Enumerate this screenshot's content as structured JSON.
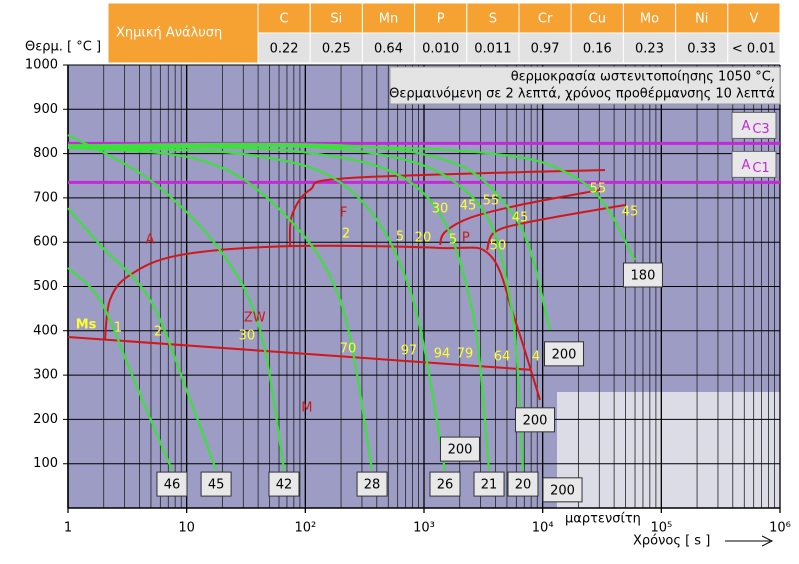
{
  "chart_data": {
    "type": "cct",
    "y_label": "Θερμ. [ °C ]",
    "x_label": "Χρόνος [ s ]",
    "xlim": [
      1,
      1000000
    ],
    "xticks": [
      1,
      10,
      {
        "value": 100,
        "label": "10²"
      },
      {
        "value": 1000,
        "label": "10³"
      },
      {
        "value": 10000,
        "label": "10⁴"
      },
      {
        "value": 100000,
        "label": "10⁵"
      },
      {
        "value": 1000000,
        "label": "10⁶"
      }
    ],
    "ylim": [
      0,
      1000
    ],
    "yticks": [
      100,
      200,
      300,
      400,
      500,
      600,
      700,
      800,
      900,
      1000
    ],
    "log_x": true,
    "grid": true,
    "chemical_analysis": {
      "title": "Χημική Ανάλυση",
      "elements": [
        "C",
        "Si",
        "Mn",
        "P",
        "S",
        "Cr",
        "Cu",
        "Mo",
        "Ni",
        "V"
      ],
      "values": [
        "0.22",
        "0.25",
        "0.64",
        "0.010",
        "0.011",
        "0.97",
        "0.16",
        "0.23",
        "0.33",
        "< 0.01"
      ]
    },
    "info": [
      "θερμοκρασία ωστενιτοποίησης 1050 °C,",
      "Θερμαινόμενη σε 2 λεπτά, χρόνος προθέρμανσης 10 λεπτά"
    ],
    "ac_lines": [
      {
        "main": "A",
        "sub": "C3",
        "value": 823
      },
      {
        "main": "A",
        "sub": "C1",
        "value": 735
      }
    ],
    "ac_color": "#c22ad6",
    "curve_color": "#3de03d",
    "phase_color": "#d01818",
    "label_color": "#ffff30",
    "cooling_curves": [
      {
        "x": [
          1,
          1.86,
          3.33,
          5.41,
          7.52
        ],
        "y": [
          542,
          470,
          312,
          176,
          86
        ],
        "label": "46",
        "label_x": 7.52,
        "label_y": 54
      },
      {
        "x": [
          1,
          1.86,
          4.91,
          10.7,
          17.7
        ],
        "y": [
          677,
          594,
          470,
          244,
          86
        ],
        "label": "45",
        "label_x": 17.7,
        "label_y": 54
      },
      {
        "x": [
          1,
          4.91,
          19.1,
          41.5,
          66.1
        ],
        "y": [
          842,
          740,
          582,
          402,
          86
        ],
        "label": "42",
        "label_x": 66.1,
        "label_y": 54
      },
      {
        "x": [
          1,
          12.9,
          61.1,
          196,
          365
        ],
        "y": [
          813,
          786,
          673,
          470,
          86
        ],
        "label": "28",
        "label_x": 365,
        "label_y": 54
      },
      {
        "x": [
          1,
          34.2,
          238,
          762,
          1503
        ],
        "y": [
          813,
          797,
          718,
          492,
          86
        ],
        "label": "26",
        "label_x": 1503,
        "label_y": 54
      },
      {
        "x": [
          1,
          90.2,
          925,
          2443,
          3532
        ],
        "y": [
          815,
          804,
          718,
          470,
          86
        ],
        "label": "21",
        "label_x": 3532,
        "label_y": 54
      },
      {
        "x": [
          1,
          238,
          2443,
          5310,
          6824
        ],
        "y": [
          817,
          808,
          707,
          470,
          86
        ],
        "label": "20",
        "label_x": 6824,
        "label_y": 54
      },
      {
        "x": [
          1,
          628,
          5310,
          11530
        ],
        "y": [
          819,
          808,
          673,
          402
        ],
        "label": "200",
        "label_x": 15130,
        "label_y": 348
      },
      {
        "x": [
          1,
          1656,
          20610,
          60000
        ],
        "y": [
          819,
          808,
          740,
          560
        ],
        "label": "180",
        "label_x": 70000,
        "label_y": 526
      }
    ],
    "box_labels": [
      {
        "text": "200",
        "x": 2010,
        "y": 133
      },
      {
        "text": "200",
        "x": 8620,
        "y": 199
      },
      {
        "text": "200",
        "x": 14700,
        "y": 41
      }
    ],
    "phase_lines": [
      {
        "x": [
          2.05,
          2.26,
          3.33,
          8.79,
          74.3,
          1364,
          3597,
          5850,
          9490
        ],
        "y": [
          379,
          470,
          526,
          571,
          591,
          587,
          571,
          424,
          244
        ]
      },
      {
        "x": [
          74.3,
          77.2,
          109,
          238,
          33500
        ],
        "y": [
          591,
          661,
          718,
          745,
          763
        ]
      },
      {
        "x": [
          1364,
          1503,
          2443,
          6440,
          30410
        ],
        "y": [
          594,
          623,
          655,
          684,
          718
        ]
      },
      {
        "x": [
          3395,
          3964,
          7817,
          49400
        ],
        "y": [
          582,
          623,
          646,
          684
        ]
      },
      {
        "x": [
          1,
          7817
        ],
        "y": [
          386,
          312
        ]
      }
    ],
    "regions": [
      {
        "text": "A",
        "x": 4.91,
        "y": 605
      },
      {
        "text": "F",
        "x": 210,
        "y": 666
      },
      {
        "text": "P",
        "x": 2250,
        "y": 609
      },
      {
        "text": "ZW",
        "x": 37.5,
        "y": 429
      },
      {
        "text": "M",
        "x": 103,
        "y": 226
      }
    ],
    "ms_label": {
      "text": "Ms",
      "x": 1.42,
      "y": 413
    },
    "curve_numbers": [
      {
        "text": "1",
        "x": 2.64,
        "y": 406
      },
      {
        "text": "2",
        "x": 5.73,
        "y": 397
      },
      {
        "text": "30",
        "x": 32.2,
        "y": 388
      },
      {
        "text": "70",
        "x": 229,
        "y": 359
      },
      {
        "text": "97",
        "x": 747,
        "y": 354
      },
      {
        "text": "94",
        "x": 1418,
        "y": 348
      },
      {
        "text": "79",
        "x": 2215,
        "y": 348
      },
      {
        "text": "64",
        "x": 4540,
        "y": 341
      },
      {
        "text": "4",
        "x": 8790,
        "y": 341
      },
      {
        "text": "2",
        "x": 220,
        "y": 619
      },
      {
        "text": "5",
        "x": 628,
        "y": 612
      },
      {
        "text": "20",
        "x": 980,
        "y": 609
      },
      {
        "text": "5",
        "x": 1755,
        "y": 605
      },
      {
        "text": "30",
        "x": 1364,
        "y": 675
      },
      {
        "text": "45",
        "x": 2350,
        "y": 682
      },
      {
        "text": "55",
        "x": 3665,
        "y": 693
      },
      {
        "text": "45",
        "x": 6440,
        "y": 655
      },
      {
        "text": "50",
        "x": 4200,
        "y": 591
      },
      {
        "text": "55",
        "x": 29200,
        "y": 720
      },
      {
        "text": "45",
        "x": 54400,
        "y": 668
      }
    ],
    "martensite_note": "μαρτενσίτη"
  }
}
